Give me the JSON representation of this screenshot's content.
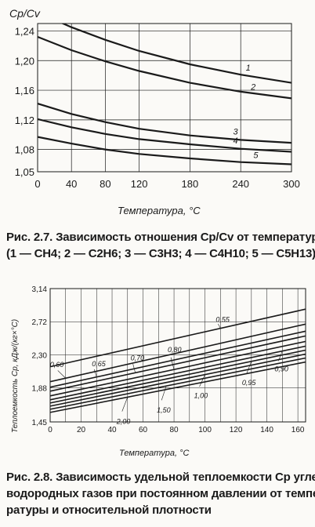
{
  "chart_data": [
    {
      "type": "line",
      "ylabel": "Cp/Cv",
      "xlabel": "Температура, °C",
      "ylim": [
        1.05,
        1.25
      ],
      "xlim": [
        0,
        300
      ],
      "x_ticks": [
        "0",
        "40",
        "80",
        "120",
        "180",
        "240",
        "300"
      ],
      "y_ticks": [
        "1,24",
        "1,20",
        "1,16",
        "1,12",
        "1,08",
        "1,05"
      ],
      "grid": true,
      "series": [
        {
          "name": "1",
          "x": [
            0,
            40,
            80,
            120,
            180,
            240,
            300
          ],
          "y": [
            1.265,
            1.245,
            1.228,
            1.213,
            1.195,
            1.181,
            1.17
          ]
        },
        {
          "name": "2",
          "x": [
            0,
            40,
            80,
            120,
            180,
            240,
            300
          ],
          "y": [
            1.232,
            1.214,
            1.199,
            1.186,
            1.17,
            1.158,
            1.149
          ]
        },
        {
          "name": "3",
          "x": [
            0,
            40,
            80,
            120,
            180,
            240,
            300
          ],
          "y": [
            1.142,
            1.128,
            1.117,
            1.108,
            1.099,
            1.093,
            1.089
          ]
        },
        {
          "name": "4",
          "x": [
            0,
            40,
            80,
            120,
            180,
            240,
            300
          ],
          "y": [
            1.121,
            1.11,
            1.101,
            1.094,
            1.087,
            1.081,
            1.077
          ]
        },
        {
          "name": "5",
          "x": [
            0,
            40,
            80,
            120,
            180,
            240,
            300
          ],
          "y": [
            1.097,
            1.088,
            1.08,
            1.074,
            1.068,
            1.063,
            1.06
          ]
        }
      ]
    },
    {
      "type": "line",
      "ylabel": "Теплоемкость Cp, кДж/(кг×°C)",
      "xlabel": "Температура, °C",
      "ylim": [
        1.45,
        3.14
      ],
      "xlim": [
        0,
        165
      ],
      "x_ticks": [
        "0",
        "20",
        "40",
        "60",
        "80",
        "100",
        "120",
        "140",
        "160"
      ],
      "y_ticks": [
        "3,14",
        "2,72",
        "2,30",
        "1,88",
        "1,45"
      ],
      "grid": true,
      "series": [
        {
          "name": "0,55",
          "x": [
            0,
            165
          ],
          "y": [
            2.15,
            2.88
          ]
        },
        {
          "name": "0,60",
          "x": [
            0,
            165
          ],
          "y": [
            1.96,
            2.69
          ]
        },
        {
          "name": "0,65",
          "x": [
            0,
            165
          ],
          "y": [
            1.89,
            2.6
          ]
        },
        {
          "name": "0,70",
          "x": [
            0,
            165
          ],
          "y": [
            1.84,
            2.54
          ]
        },
        {
          "name": "0,80",
          "x": [
            0,
            165
          ],
          "y": [
            1.78,
            2.47
          ]
        },
        {
          "name": "0,90",
          "x": [
            0,
            165
          ],
          "y": [
            1.73,
            2.41
          ]
        },
        {
          "name": "0,95",
          "x": [
            0,
            165
          ],
          "y": [
            1.69,
            2.36
          ]
        },
        {
          "name": "1,00",
          "x": [
            0,
            165
          ],
          "y": [
            1.65,
            2.31
          ]
        },
        {
          "name": "1,50",
          "x": [
            0,
            165
          ],
          "y": [
            1.61,
            2.26
          ]
        },
        {
          "name": "2,00",
          "x": [
            0,
            165
          ],
          "y": [
            1.57,
            2.21
          ]
        }
      ]
    }
  ],
  "captions": {
    "fig1_line1": "Рис. 2.7. Зависимость отношения Cp/Cv от температуры",
    "fig1_line2": "(1 — CH4; 2 — C2H6; 3 — C3H3; 4 — C4H10; 5 — C5H13)",
    "fig2_line1": "Рис. 2.8. Зависимость удельной теплоемкости Cp угле-",
    "fig2_line2": "водородных газов при постоянном давлении от темпе-",
    "fig2_line3": "ратуры и относительной плотности"
  },
  "colors": {
    "ink": "#1a1a1a",
    "paper": "#fbfaf7"
  }
}
